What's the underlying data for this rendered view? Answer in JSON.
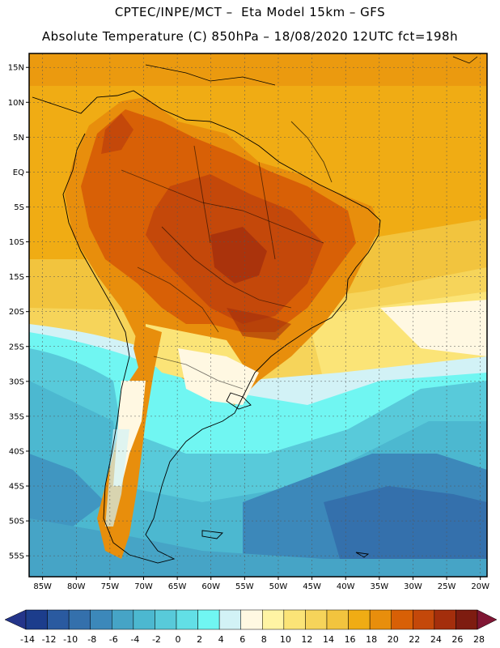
{
  "header": {
    "line1": "CPTEC/INPE/MCT –  Eta Model 15km – GFS",
    "line2": "Absolute Temperature (C) 850hPa – 18/08/2020 12UTC fct=198h"
  },
  "map": {
    "lat_labels": [
      "15N",
      "10N",
      "5N",
      "EQ",
      "5S",
      "10S",
      "15S",
      "20S",
      "25S",
      "30S",
      "35S",
      "40S",
      "45S",
      "50S",
      "55S"
    ],
    "lon_labels": [
      "85W",
      "80W",
      "75W",
      "70W",
      "65W",
      "60W",
      "55W",
      "50W",
      "45W",
      "40W",
      "35W",
      "30W",
      "25W",
      "20W"
    ],
    "extent": {
      "lon_min": -87,
      "lon_max": -19,
      "lat_min": -58,
      "lat_max": 17
    }
  },
  "colorbar": {
    "labels": [
      "-14",
      "-12",
      "-10",
      "-8",
      "-6",
      "-4",
      "-2",
      "0",
      "2",
      "4",
      "6",
      "8",
      "10",
      "12",
      "14",
      "16",
      "18",
      "20",
      "22",
      "24",
      "26",
      "28"
    ],
    "colors": [
      "#1c3d8c",
      "#2a5aa0",
      "#3470ac",
      "#3c88ba",
      "#46a4c6",
      "#4cb8d0",
      "#58cada",
      "#62dfe6",
      "#70f6f2",
      "#d2f2f6",
      "#fff8e2",
      "#fff4a4",
      "#fbe477",
      "#f6d45a",
      "#f2c43e",
      "#f0ac14",
      "#e88e0c",
      "#d86006",
      "#c4480a",
      "#a42e0c",
      "#7e1c10"
    ],
    "under_color": "#24358a",
    "over_color": "#801634"
  }
}
